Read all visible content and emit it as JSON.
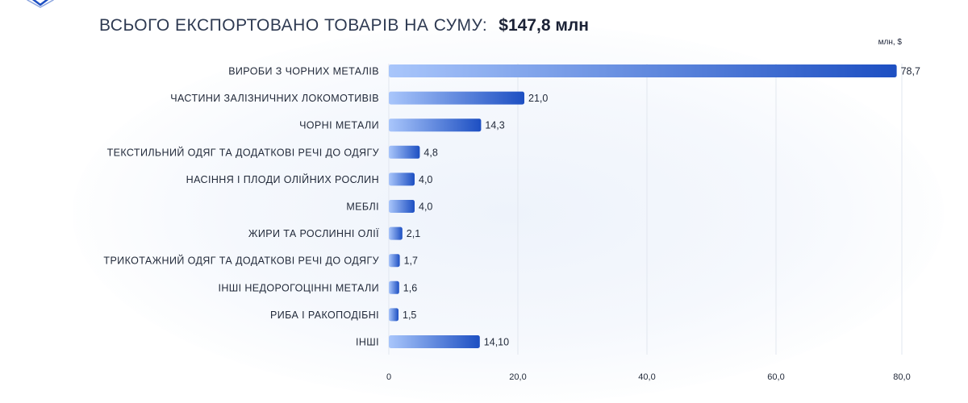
{
  "header": {
    "total_label": "ВСЬОГО ЕКСПОРТОВАНО ТОВАРІВ НА СУМУ:",
    "total_value": "$147,8 млн"
  },
  "colors": {
    "bar_start": "#a9c6fb",
    "bar_end": "#1d4fc2",
    "grid": "#e2e7ef",
    "text": "#222a3a"
  },
  "chart_data": {
    "type": "bar",
    "orientation": "horizontal",
    "unit_label": "млн, $",
    "categories": [
      "ВИРОБИ З ЧОРНИХ МЕТАЛІВ",
      "ЧАСТИНИ ЗАЛІЗНИЧНИХ ЛОКОМОТИВІВ",
      "ЧОРНІ МЕТАЛИ",
      "ТЕКСТИЛЬНИЙ ОДЯГ ТА ДОДАТКОВІ РЕЧІ ДО ОДЯГУ",
      "НАСІННЯ І ПЛОДИ ОЛІЙНИХ РОСЛИН",
      "МЕБЛІ",
      "ЖИРИ ТА РОСЛИННІ ОЛІЇ",
      "ТРИКОТАЖНИЙ ОДЯГ ТА ДОДАТКОВІ РЕЧІ ДО ОДЯГУ",
      "ІНШІ НЕДОРОГОЦІННІ МЕТАЛИ",
      "РИБА І РАКОПОДІБНІ",
      "ІНШІ"
    ],
    "values": [
      78.7,
      21.0,
      14.3,
      4.8,
      4.0,
      4.0,
      2.1,
      1.7,
      1.6,
      1.5,
      14.1
    ],
    "value_labels": [
      "78,7",
      "21,0",
      "14,3",
      "4,8",
      "4,0",
      "4,0",
      "2,1",
      "1,7",
      "1,6",
      "1,5",
      "14,10"
    ],
    "xlim": [
      0,
      80
    ],
    "ticks": [
      0,
      20,
      40,
      60,
      80
    ],
    "tick_labels": [
      "0",
      "20,0",
      "40,0",
      "60,0",
      "80,0"
    ],
    "grid": true
  }
}
